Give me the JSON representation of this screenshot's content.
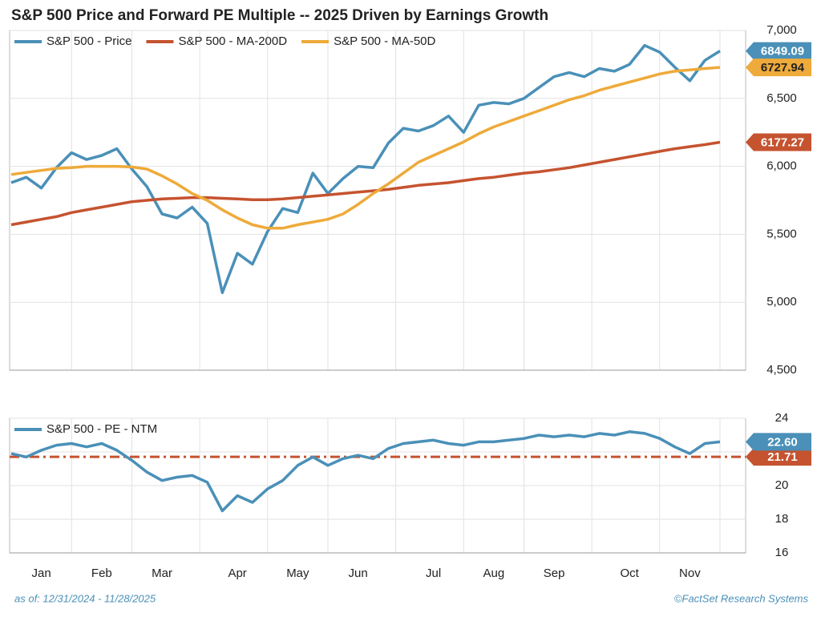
{
  "title": "S&P 500 Price and Forward PE Multiple -- 2025 Driven by Earnings Growth",
  "footer": {
    "left": "as of: 12/31/2024 - 11/28/2025",
    "right": "©FactSet Research Systems"
  },
  "chart_data": [
    {
      "type": "line",
      "ylim": [
        4500,
        7000
      ],
      "yticks": [
        {
          "value": 4500,
          "label": "4,500"
        },
        {
          "value": 5000,
          "label": "5,000"
        },
        {
          "value": 5500,
          "label": "5,500"
        },
        {
          "value": 6000,
          "label": "6,000"
        },
        {
          "value": 6500,
          "label": "6,500"
        },
        {
          "value": 7000,
          "label": "7,000"
        }
      ],
      "grid": true,
      "series": [
        {
          "name": "S&P 500 - Price",
          "color": "#4a90b8",
          "values": [
            5880,
            5920,
            5840,
            5990,
            6100,
            6050,
            6080,
            6130,
            5980,
            5850,
            5650,
            5620,
            5700,
            5580,
            5070,
            5360,
            5280,
            5520,
            5690,
            5660,
            5950,
            5800,
            5910,
            6000,
            5990,
            6170,
            6280,
            6260,
            6300,
            6370,
            6250,
            6450,
            6470,
            6460,
            6500,
            6580,
            6660,
            6690,
            6660,
            6720,
            6700,
            6750,
            6890,
            6840,
            6730,
            6630,
            6780,
            6849.09
          ]
        },
        {
          "name": "S&P 500 - MA-200D",
          "color": "#c5532f",
          "values": [
            5570,
            5590,
            5610,
            5630,
            5660,
            5680,
            5700,
            5720,
            5740,
            5750,
            5760,
            5765,
            5770,
            5770,
            5765,
            5760,
            5755,
            5755,
            5760,
            5770,
            5780,
            5790,
            5800,
            5810,
            5820,
            5830,
            5845,
            5860,
            5870,
            5880,
            5895,
            5910,
            5920,
            5935,
            5950,
            5960,
            5975,
            5990,
            6010,
            6030,
            6050,
            6070,
            6090,
            6110,
            6130,
            6145,
            6160,
            6177.27
          ]
        },
        {
          "name": "S&P 500 - MA-50D",
          "color": "#eeaa3a",
          "values": [
            5940,
            5955,
            5970,
            5985,
            5990,
            6000,
            6000,
            6000,
            5995,
            5980,
            5930,
            5870,
            5800,
            5750,
            5680,
            5620,
            5570,
            5545,
            5545,
            5570,
            5590,
            5610,
            5650,
            5720,
            5800,
            5870,
            5950,
            6030,
            6080,
            6130,
            6180,
            6240,
            6290,
            6330,
            6370,
            6410,
            6450,
            6490,
            6520,
            6560,
            6590,
            6620,
            6650,
            6680,
            6700,
            6710,
            6720,
            6727.94
          ]
        }
      ]
    },
    {
      "type": "line",
      "ylim": [
        16,
        24
      ],
      "yticks": [
        16,
        18,
        20,
        22,
        24
      ],
      "grid": true,
      "categories": [
        null,
        null,
        "Jan",
        null,
        null,
        null,
        "Feb",
        null,
        null,
        null,
        "Mar",
        null,
        null,
        null,
        null,
        "Apr",
        null,
        null,
        null,
        "May",
        null,
        null,
        null,
        "Jun",
        null,
        null,
        null,
        null,
        "Jul",
        null,
        null,
        null,
        "Aug",
        null,
        null,
        null,
        "Sep",
        null,
        null,
        null,
        null,
        "Oct",
        null,
        null,
        null,
        "Nov",
        null,
        null
      ],
      "series": [
        {
          "name": "S&P 500 - PE - NTM",
          "color": "#4a90b8",
          "values": [
            21.9,
            21.7,
            22.1,
            22.4,
            22.5,
            22.3,
            22.5,
            22.1,
            21.5,
            20.8,
            20.3,
            20.5,
            20.6,
            20.2,
            18.5,
            19.4,
            19.0,
            19.8,
            20.3,
            21.2,
            21.7,
            21.2,
            21.6,
            21.8,
            21.6,
            22.2,
            22.5,
            22.6,
            22.7,
            22.5,
            22.4,
            22.6,
            22.6,
            22.7,
            22.8,
            23.0,
            22.9,
            23.0,
            22.9,
            23.1,
            23.0,
            23.2,
            23.1,
            22.8,
            22.3,
            21.9,
            22.5,
            22.6
          ],
          "value_labels": [
            null,
            null,
            null,
            null,
            null,
            null,
            null,
            null,
            null,
            null,
            null,
            null,
            null,
            null,
            null,
            null,
            null,
            null,
            null,
            null,
            null,
            null,
            null,
            null,
            null,
            null,
            null,
            null,
            null,
            null,
            null,
            null,
            null,
            null,
            null,
            null,
            null,
            null,
            null,
            null,
            null,
            null,
            null,
            null,
            null,
            null,
            null,
            "22.60"
          ]
        }
      ],
      "average": {
        "value": 21.71,
        "color": "#c5532f"
      }
    }
  ]
}
